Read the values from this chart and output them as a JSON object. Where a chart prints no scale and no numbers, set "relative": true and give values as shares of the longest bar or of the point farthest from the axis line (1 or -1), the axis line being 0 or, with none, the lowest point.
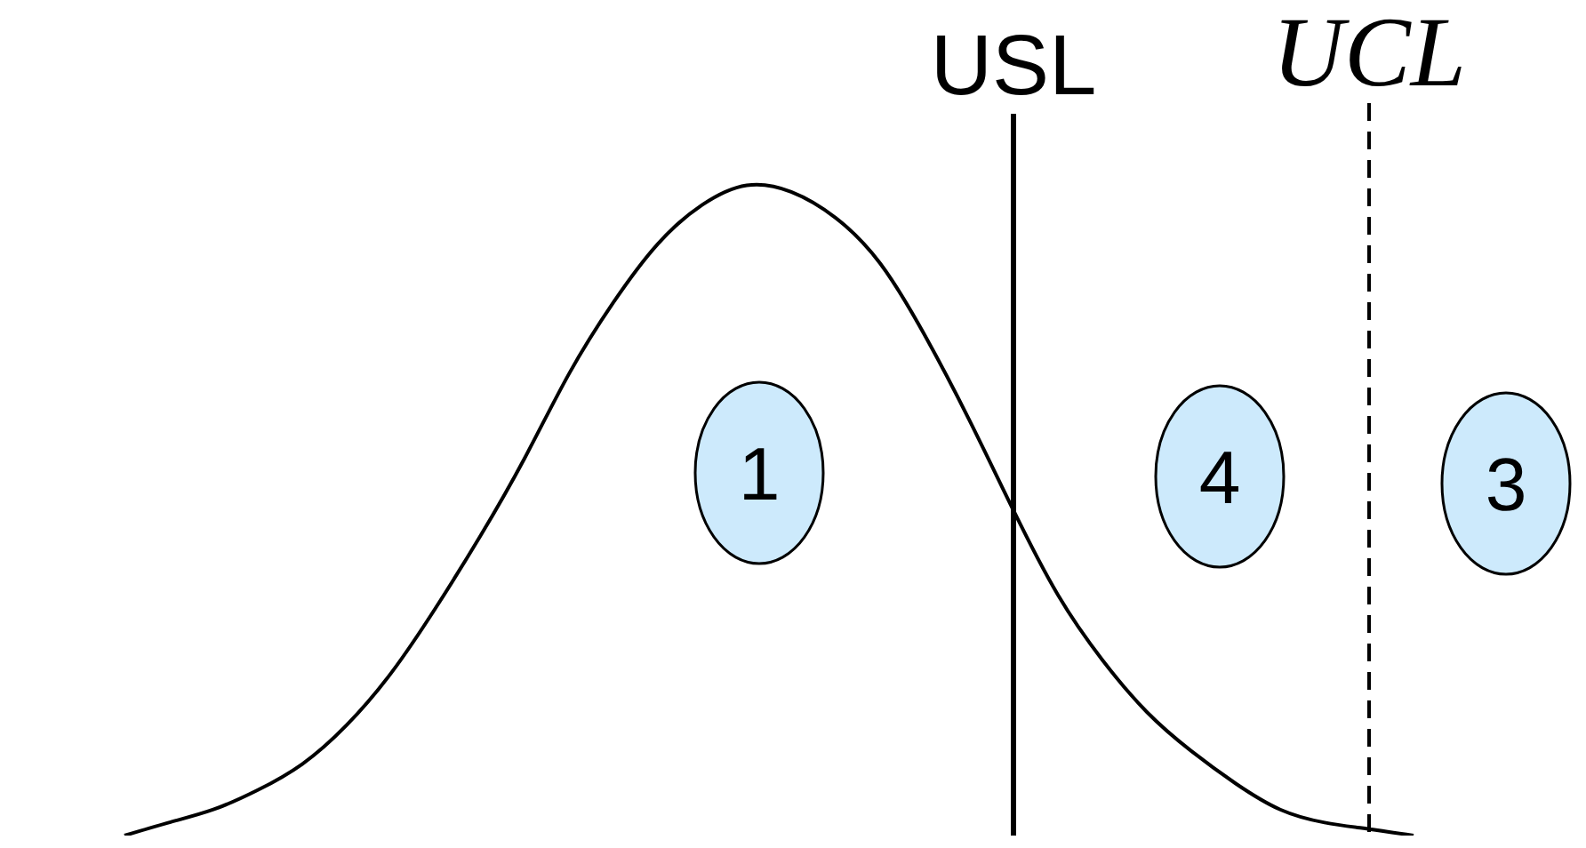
{
  "chart_data": {
    "type": "line",
    "relative": true,
    "categories": [
      null,
      null,
      null,
      null,
      null,
      null,
      null,
      null,
      null,
      null,
      null,
      null,
      null,
      null,
      null,
      null,
      null,
      null,
      null,
      null,
      null,
      null,
      null,
      null,
      null,
      null,
      null,
      null,
      null,
      null,
      null,
      null,
      null
    ],
    "color": "#000000",
    "line_style": "solid",
    "values": [
      null,
      null,
      0,
      0.02,
      0.04,
      0.07,
      0.11,
      0.17,
      0.25,
      0.35,
      0.46,
      0.58,
      0.71,
      0.82,
      0.91,
      0.97,
      1,
      0.99,
      0.95,
      0.88,
      0.77,
      0.64,
      0.5,
      0.37,
      0.27,
      0.19,
      0.13,
      0.08,
      0.04,
      0.02,
      0.01,
      0,
      null
    ],
    "annotations": [
      "USL",
      "UCL",
      "1",
      "4",
      "3"
    ]
  }
}
